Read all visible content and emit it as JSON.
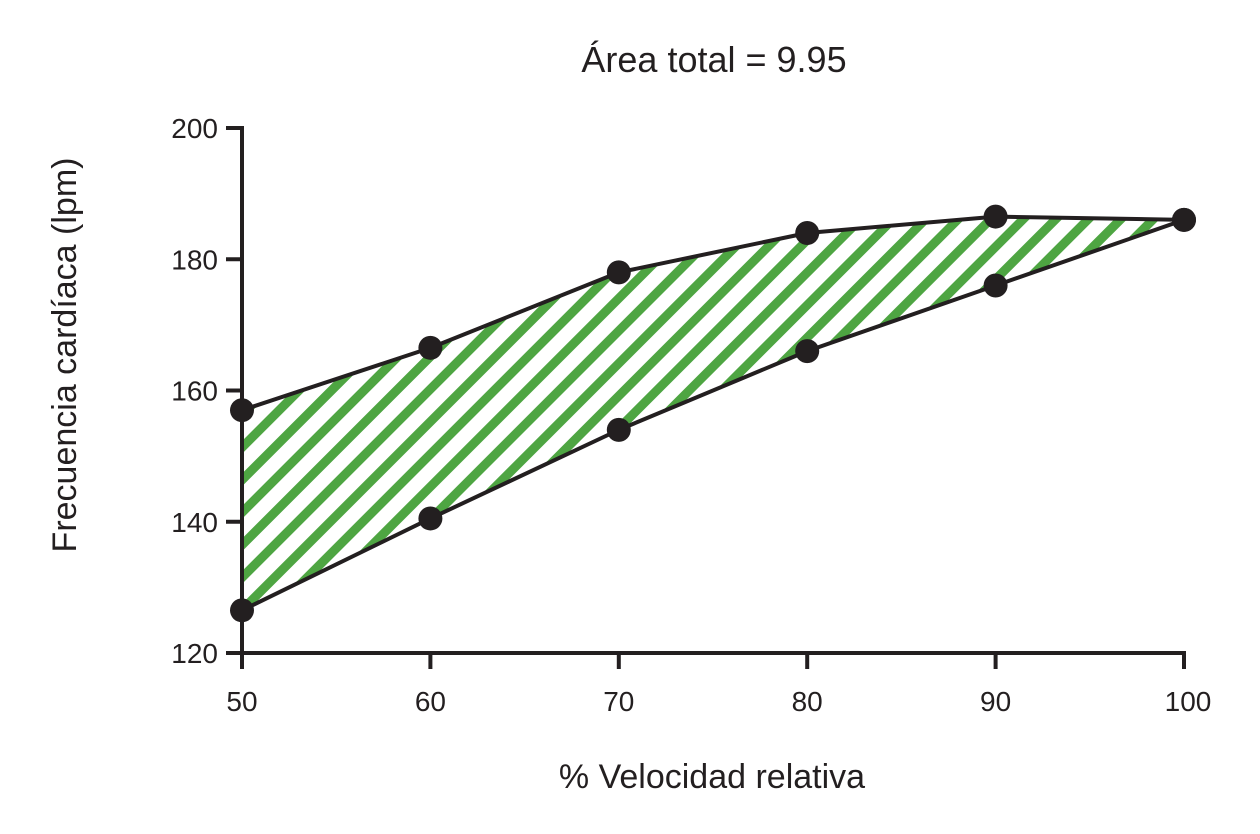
{
  "chart_data": {
    "type": "area",
    "title": "Área total = 9.95",
    "xlabel": "% Velocidad relativa",
    "ylabel": "Frecuencia cardíaca (lpm)",
    "xlim": [
      50,
      100
    ],
    "ylim": [
      120,
      200
    ],
    "x_ticks": [
      50,
      60,
      70,
      80,
      90,
      100
    ],
    "y_ticks": [
      120,
      140,
      160,
      180,
      200
    ],
    "grid": false,
    "legend": "none",
    "fill_color": "#4ea542",
    "fill_pattern": "diagonal-stripes",
    "line_color": "#231f20",
    "series": [
      {
        "x": [
          50,
          60,
          70,
          80,
          90,
          100
        ],
        "values": [
          157,
          166.5,
          178,
          184,
          186.5,
          186
        ]
      },
      {
        "x": [
          50,
          60,
          70,
          80,
          90,
          100
        ],
        "values": [
          126.5,
          140.5,
          154,
          166,
          176,
          186
        ]
      }
    ]
  }
}
